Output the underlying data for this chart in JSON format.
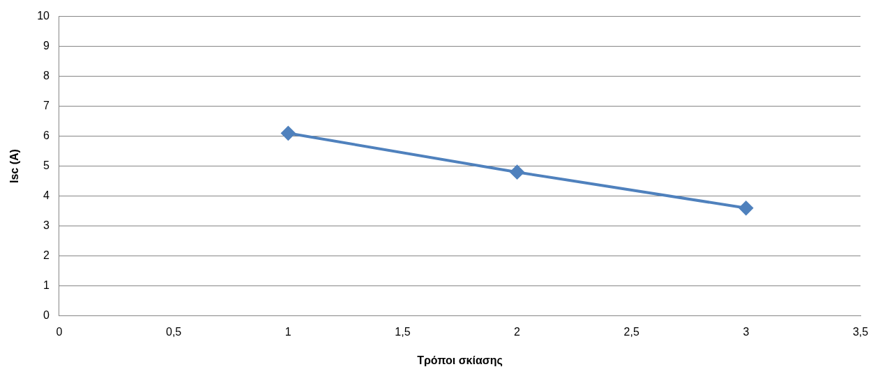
{
  "chart_data": {
    "type": "line",
    "xlabel": "Τρόποι σκίασης",
    "ylabel": "Isc (A)",
    "x": [
      1,
      2,
      3
    ],
    "series": [
      {
        "color": "#4f81bd",
        "values": [
          6.1,
          4.8,
          3.6
        ]
      }
    ],
    "xlim": [
      0,
      3.5
    ],
    "xticks": [
      0,
      {
        "value": 0.5,
        "label": "0,5"
      },
      1,
      {
        "value": 1.5,
        "label": "1,5"
      },
      2,
      {
        "value": 2.5,
        "label": "2,5"
      },
      3,
      {
        "value": 3.5,
        "label": "3,5"
      }
    ],
    "ylim": [
      0,
      10
    ],
    "yticks": [
      0,
      1,
      2,
      3,
      4,
      5,
      6,
      7,
      8,
      9,
      10
    ],
    "grid": "y",
    "marker": "diamond",
    "line_style": "solid"
  }
}
